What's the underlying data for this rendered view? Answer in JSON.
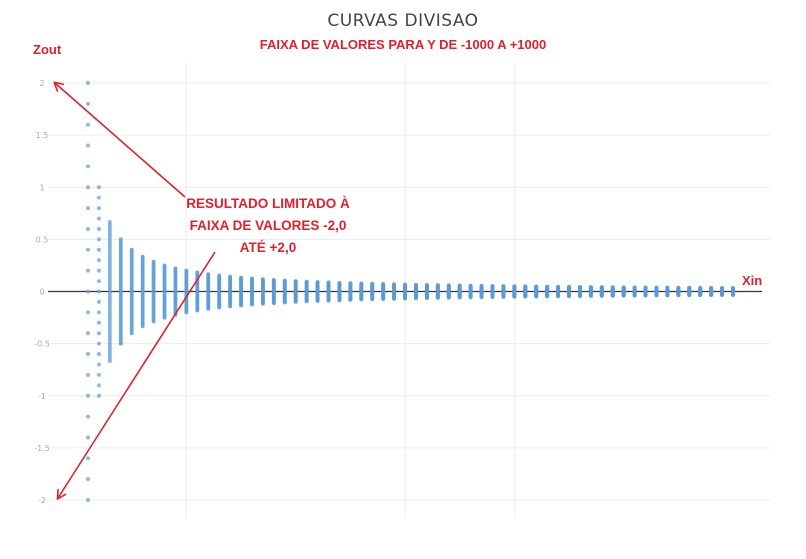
{
  "chart_data": {
    "type": "scatter",
    "title": "CURVAS DIVISAO",
    "subtitle": "FAIXA DE VALORES PARA Y DE -1000 A +1000",
    "xlabel": "Xin",
    "ylabel": "Zout",
    "ylim": [
      -2,
      2
    ],
    "yticks": [
      2,
      1.5,
      1,
      0.5,
      0,
      -0.5,
      -1,
      -1.5,
      -2
    ],
    "ytick_labels": [
      "2",
      "1.5",
      "1",
      "0.5",
      "0",
      "-0.5",
      "-1",
      "-1.5",
      "-2"
    ],
    "x_range": [
      1,
      60
    ],
    "y_range_input": [
      -1000,
      1000
    ],
    "clip": [
      -2,
      2
    ],
    "grid": true,
    "series_color": "#5b9bd5",
    "annotation_lines": [
      "RESULTADO LIMITADO À",
      "FAIXA DE VALORES -2,0",
      "ATÉ +2,0"
    ],
    "annotation_color": "#e0202a"
  }
}
